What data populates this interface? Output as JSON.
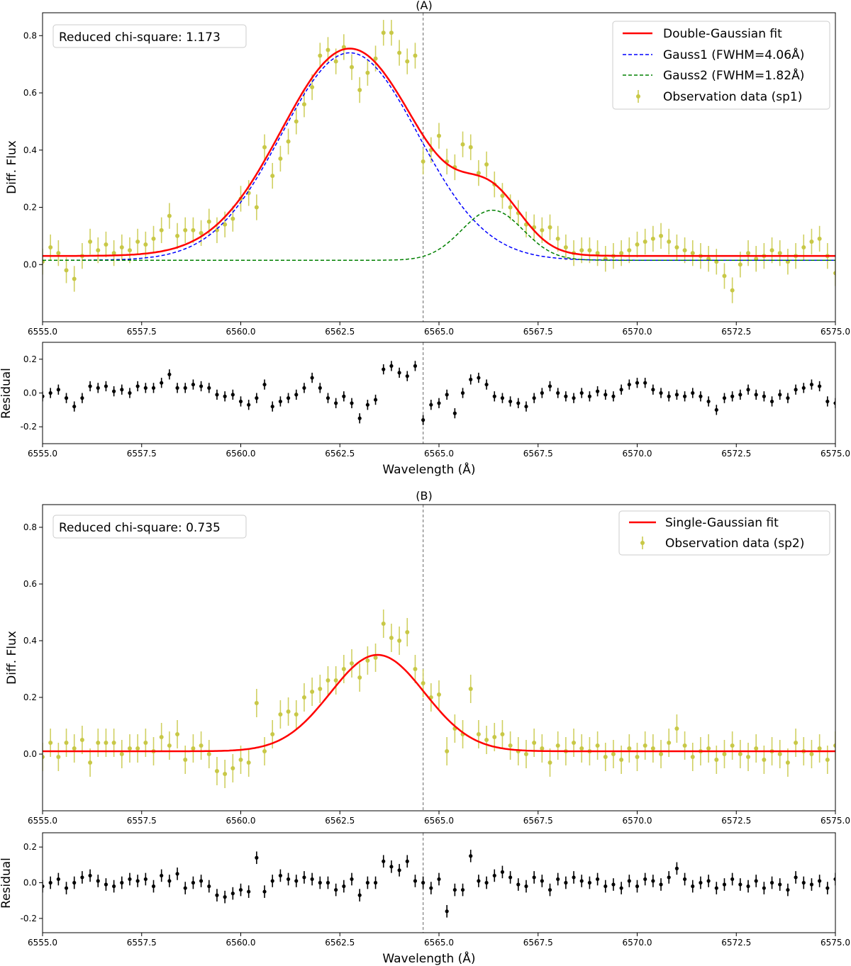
{
  "chart_data": [
    {
      "type": "scatter",
      "title": "(A)",
      "ylabel": "Diff. Flux",
      "xlim": [
        6555,
        6575
      ],
      "ylim": [
        -0.2,
        0.88
      ],
      "yticks": [
        "0.0",
        "0.2",
        "0.4",
        "0.6",
        "0.8"
      ],
      "xticks": [
        "6555.0",
        "6557.5",
        "6560.0",
        "6562.5",
        "6565.0",
        "6567.5",
        "6570.0",
        "6572.5",
        "6575.0"
      ],
      "annotation": "Reduced chi-square: 1.173",
      "ref_line_x": 6564.6,
      "legend_position": "top-right",
      "legend": [
        "Double-Gaussian fit",
        "Gauss1 (FWHM=4.06Å)",
        "Gauss2 (FWHM=1.82Å)",
        "Observation data (sp1)"
      ],
      "fit_params": {
        "baseline": 0.03,
        "g1": {
          "center": 6562.75,
          "fwhm": 4.06,
          "amp": 0.725
        },
        "g2": {
          "center": 6566.35,
          "fwhm": 1.82,
          "amp": 0.175
        }
      },
      "observations": {
        "x": [
          6555.0,
          6555.2,
          6555.4,
          6555.6,
          6555.8,
          6556.0,
          6556.2,
          6556.4,
          6556.6,
          6556.8,
          6557.0,
          6557.2,
          6557.4,
          6557.6,
          6557.8,
          6558.0,
          6558.2,
          6558.4,
          6558.6,
          6558.8,
          6559.0,
          6559.2,
          6559.4,
          6559.6,
          6559.8,
          6560.0,
          6560.2,
          6560.4,
          6560.6,
          6560.8,
          6561.0,
          6561.2,
          6561.4,
          6561.6,
          6561.8,
          6562.0,
          6562.2,
          6562.4,
          6562.6,
          6562.8,
          6563.0,
          6563.2,
          6563.4,
          6563.6,
          6563.8,
          6564.0,
          6564.2,
          6564.4,
          6564.6,
          6564.8,
          6565.0,
          6565.2,
          6565.4,
          6565.6,
          6565.8,
          6566.0,
          6566.2,
          6566.4,
          6566.6,
          6566.8,
          6567.0,
          6567.2,
          6567.4,
          6567.6,
          6567.8,
          6568.0,
          6568.2,
          6568.4,
          6568.6,
          6568.8,
          6569.0,
          6569.2,
          6569.4,
          6569.6,
          6569.8,
          6570.0,
          6570.2,
          6570.4,
          6570.6,
          6570.8,
          6571.0,
          6571.2,
          6571.4,
          6571.6,
          6571.8,
          6572.0,
          6572.2,
          6572.4,
          6572.6,
          6572.8,
          6573.0,
          6573.2,
          6573.4,
          6573.6,
          6573.8,
          6574.0,
          6574.2,
          6574.4,
          6574.6,
          6574.8,
          6575.0
        ],
        "y": [
          0.01,
          0.06,
          0.04,
          -0.02,
          -0.05,
          0.03,
          0.08,
          0.05,
          0.07,
          0.04,
          0.06,
          0.05,
          0.08,
          0.07,
          0.09,
          0.12,
          0.17,
          0.1,
          0.12,
          0.12,
          0.11,
          0.15,
          0.12,
          0.14,
          0.16,
          0.23,
          0.25,
          0.2,
          0.41,
          0.31,
          0.37,
          0.43,
          0.5,
          0.56,
          0.62,
          0.73,
          0.75,
          0.71,
          0.76,
          0.69,
          0.61,
          0.67,
          0.72,
          0.81,
          0.81,
          0.74,
          0.71,
          0.73,
          0.36,
          0.4,
          0.45,
          0.36,
          0.34,
          0.42,
          0.41,
          0.32,
          0.35,
          0.28,
          0.24,
          0.2,
          0.18,
          0.14,
          0.13,
          0.12,
          0.13,
          0.09,
          0.06,
          0.04,
          0.05,
          0.05,
          0.04,
          0.02,
          0.03,
          0.04,
          0.05,
          0.07,
          0.08,
          0.09,
          0.1,
          0.08,
          0.06,
          0.05,
          0.04,
          0.03,
          0.02,
          0.01,
          -0.04,
          -0.09,
          0.0,
          0.04,
          0.02,
          0.03,
          0.05,
          0.04,
          0.01,
          0.03,
          0.06,
          0.08,
          0.09,
          0.03,
          -0.03
        ],
        "err": 0.045
      },
      "residual": {
        "ylabel": "Residual",
        "xlabel": "Wavelength (Å)",
        "ylim": [
          -0.3,
          0.3
        ],
        "yticks": [
          "-0.2",
          "0.0",
          "0.2"
        ],
        "x": [
          6555.0,
          6555.2,
          6555.4,
          6555.6,
          6555.8,
          6556.0,
          6556.2,
          6556.4,
          6556.6,
          6556.8,
          6557.0,
          6557.2,
          6557.4,
          6557.6,
          6557.8,
          6558.0,
          6558.2,
          6558.4,
          6558.6,
          6558.8,
          6559.0,
          6559.2,
          6559.4,
          6559.6,
          6559.8,
          6560.0,
          6560.2,
          6560.4,
          6560.6,
          6560.8,
          6561.0,
          6561.2,
          6561.4,
          6561.6,
          6561.8,
          6562.0,
          6562.2,
          6562.4,
          6562.6,
          6562.8,
          6563.0,
          6563.2,
          6563.4,
          6563.6,
          6563.8,
          6564.0,
          6564.2,
          6564.4,
          6564.6,
          6564.8,
          6565.0,
          6565.2,
          6565.4,
          6565.6,
          6565.8,
          6566.0,
          6566.2,
          6566.4,
          6566.6,
          6566.8,
          6567.0,
          6567.2,
          6567.4,
          6567.6,
          6567.8,
          6568.0,
          6568.2,
          6568.4,
          6568.6,
          6568.8,
          6569.0,
          6569.2,
          6569.4,
          6569.6,
          6569.8,
          6570.0,
          6570.2,
          6570.4,
          6570.6,
          6570.8,
          6571.0,
          6571.2,
          6571.4,
          6571.6,
          6571.8,
          6572.0,
          6572.2,
          6572.4,
          6572.6,
          6572.8,
          6573.0,
          6573.2,
          6573.4,
          6573.6,
          6573.8,
          6574.0,
          6574.2,
          6574.4,
          6574.6,
          6574.8,
          6575.0
        ],
        "y": [
          -0.02,
          0.0,
          0.02,
          -0.03,
          -0.08,
          -0.03,
          0.04,
          0.03,
          0.04,
          0.01,
          0.02,
          0.0,
          0.04,
          0.03,
          0.03,
          0.06,
          0.11,
          0.03,
          0.03,
          0.05,
          0.04,
          0.03,
          -0.01,
          -0.02,
          -0.01,
          -0.05,
          -0.07,
          -0.03,
          0.05,
          -0.08,
          -0.05,
          -0.03,
          -0.01,
          0.03,
          0.09,
          0.03,
          -0.03,
          -0.06,
          -0.02,
          -0.06,
          -0.15,
          -0.07,
          -0.04,
          0.14,
          0.16,
          0.12,
          0.1,
          0.16,
          -0.16,
          -0.07,
          -0.06,
          -0.01,
          -0.12,
          0.0,
          0.08,
          0.09,
          0.05,
          -0.02,
          -0.03,
          -0.05,
          -0.06,
          -0.08,
          -0.03,
          0.0,
          0.04,
          0.0,
          -0.02,
          -0.03,
          0.0,
          -0.02,
          0.01,
          -0.01,
          -0.02,
          0.02,
          0.05,
          0.06,
          0.06,
          0.02,
          0.0,
          -0.02,
          -0.01,
          -0.02,
          0.0,
          -0.02,
          -0.05,
          -0.1,
          -0.03,
          -0.02,
          -0.01,
          0.02,
          -0.01,
          -0.02,
          -0.05,
          -0.01,
          -0.03,
          0.02,
          0.03,
          0.05,
          0.04,
          -0.05,
          -0.06
        ],
        "err": 0.03
      }
    },
    {
      "type": "scatter",
      "title": "(B)",
      "ylabel": "Diff. Flux",
      "xlim": [
        6555,
        6575
      ],
      "ylim": [
        -0.2,
        0.88
      ],
      "yticks": [
        "0.0",
        "0.2",
        "0.4",
        "0.6",
        "0.8"
      ],
      "xticks": [
        "6555.0",
        "6557.5",
        "6560.0",
        "6562.5",
        "6565.0",
        "6567.5",
        "6570.0",
        "6572.5",
        "6575.0"
      ],
      "annotation": "Reduced chi-square: 0.735",
      "ref_line_x": 6564.6,
      "legend_position": "top-right",
      "legend": [
        "Single-Gaussian fit",
        "Observation data (sp2)"
      ],
      "fit_params": {
        "baseline": 0.01,
        "g1": {
          "center": 6563.45,
          "fwhm": 2.8,
          "amp": 0.34
        }
      },
      "observations": {
        "x": [
          6555.0,
          6555.2,
          6555.4,
          6555.6,
          6555.8,
          6556.0,
          6556.2,
          6556.4,
          6556.6,
          6556.8,
          6557.0,
          6557.2,
          6557.4,
          6557.6,
          6557.8,
          6558.0,
          6558.2,
          6558.4,
          6558.6,
          6558.8,
          6559.0,
          6559.2,
          6559.4,
          6559.6,
          6559.8,
          6560.0,
          6560.2,
          6560.4,
          6560.6,
          6560.8,
          6561.0,
          6561.2,
          6561.4,
          6561.6,
          6561.8,
          6562.0,
          6562.2,
          6562.4,
          6562.6,
          6562.8,
          6563.0,
          6563.2,
          6563.4,
          6563.6,
          6563.8,
          6564.0,
          6564.2,
          6564.4,
          6564.6,
          6564.8,
          6565.0,
          6565.2,
          6565.4,
          6565.6,
          6565.8,
          6566.0,
          6566.2,
          6566.4,
          6566.6,
          6566.8,
          6567.0,
          6567.2,
          6567.4,
          6567.6,
          6567.8,
          6568.0,
          6568.2,
          6568.4,
          6568.6,
          6568.8,
          6569.0,
          6569.2,
          6569.4,
          6569.6,
          6569.8,
          6570.0,
          6570.2,
          6570.4,
          6570.6,
          6570.8,
          6571.0,
          6571.2,
          6571.4,
          6571.6,
          6571.8,
          6572.0,
          6572.2,
          6572.4,
          6572.6,
          6572.8,
          6573.0,
          6573.2,
          6573.4,
          6573.6,
          6573.8,
          6574.0,
          6574.2,
          6574.4,
          6574.6,
          6574.8,
          6575.0
        ],
        "y": [
          -0.01,
          0.04,
          -0.01,
          0.04,
          0.02,
          0.05,
          -0.03,
          0.04,
          0.04,
          0.04,
          0.0,
          0.02,
          0.02,
          0.04,
          0.01,
          0.06,
          0.03,
          0.07,
          -0.02,
          0.02,
          0.03,
          0.0,
          -0.06,
          -0.07,
          -0.05,
          -0.02,
          -0.03,
          0.18,
          0.01,
          0.07,
          0.14,
          0.15,
          0.14,
          0.2,
          0.22,
          0.23,
          0.26,
          0.26,
          0.3,
          0.32,
          0.27,
          0.33,
          0.34,
          0.46,
          0.41,
          0.4,
          0.43,
          0.3,
          0.25,
          0.2,
          0.21,
          0.01,
          0.09,
          0.07,
          0.23,
          0.07,
          0.05,
          0.06,
          0.07,
          0.03,
          0.01,
          0.0,
          0.04,
          0.02,
          -0.03,
          0.03,
          0.01,
          0.04,
          0.02,
          0.01,
          0.03,
          -0.01,
          0.0,
          -0.02,
          0.02,
          -0.01,
          0.03,
          0.02,
          0.0,
          0.04,
          0.09,
          0.03,
          -0.01,
          0.01,
          0.02,
          -0.02,
          0.0,
          0.03,
          0.0,
          -0.01,
          0.02,
          -0.02,
          0.01,
          0.0,
          -0.03,
          0.04,
          0.01,
          0.0,
          0.02,
          -0.02,
          0.03
        ],
        "err": 0.05
      },
      "residual": {
        "ylabel": "Residual",
        "xlabel": "Wavelength (Å)",
        "ylim": [
          -0.28,
          0.28
        ],
        "yticks": [
          "-0.2",
          "0.0",
          "0.2"
        ],
        "x": [
          6555.0,
          6555.2,
          6555.4,
          6555.6,
          6555.8,
          6556.0,
          6556.2,
          6556.4,
          6556.6,
          6556.8,
          6557.0,
          6557.2,
          6557.4,
          6557.6,
          6557.8,
          6558.0,
          6558.2,
          6558.4,
          6558.6,
          6558.8,
          6559.0,
          6559.2,
          6559.4,
          6559.6,
          6559.8,
          6560.0,
          6560.2,
          6560.4,
          6560.6,
          6560.8,
          6561.0,
          6561.2,
          6561.4,
          6561.6,
          6561.8,
          6562.0,
          6562.2,
          6562.4,
          6562.6,
          6562.8,
          6563.0,
          6563.2,
          6563.4,
          6563.6,
          6563.8,
          6564.0,
          6564.2,
          6564.4,
          6564.6,
          6564.8,
          6565.0,
          6565.2,
          6565.4,
          6565.6,
          6565.8,
          6566.0,
          6566.2,
          6566.4,
          6566.6,
          6566.8,
          6567.0,
          6567.2,
          6567.4,
          6567.6,
          6567.8,
          6568.0,
          6568.2,
          6568.4,
          6568.6,
          6568.8,
          6569.0,
          6569.2,
          6569.4,
          6569.6,
          6569.8,
          6570.0,
          6570.2,
          6570.4,
          6570.6,
          6570.8,
          6571.0,
          6571.2,
          6571.4,
          6571.6,
          6571.8,
          6572.0,
          6572.2,
          6572.4,
          6572.6,
          6572.8,
          6573.0,
          6573.2,
          6573.4,
          6573.6,
          6573.8,
          6574.0,
          6574.2,
          6574.4,
          6574.6,
          6574.8,
          6575.0
        ],
        "y": [
          -0.02,
          0.0,
          0.02,
          -0.03,
          0.0,
          0.03,
          0.04,
          0.01,
          -0.01,
          -0.02,
          0.0,
          0.02,
          0.01,
          0.02,
          -0.02,
          0.04,
          0.01,
          0.05,
          -0.03,
          0.0,
          0.01,
          -0.02,
          -0.07,
          -0.08,
          -0.06,
          -0.04,
          -0.05,
          0.14,
          -0.05,
          0.01,
          0.04,
          0.02,
          0.01,
          0.03,
          0.02,
          0.0,
          0.0,
          -0.04,
          -0.02,
          0.02,
          -0.07,
          0.0,
          0.0,
          0.12,
          0.09,
          0.07,
          0.12,
          0.01,
          0.0,
          -0.03,
          0.02,
          -0.16,
          -0.04,
          -0.04,
          0.15,
          0.01,
          0.0,
          0.04,
          0.06,
          0.03,
          -0.01,
          -0.02,
          0.03,
          0.01,
          -0.04,
          0.02,
          0.0,
          0.03,
          0.01,
          0.0,
          0.02,
          -0.02,
          -0.01,
          -0.03,
          0.01,
          -0.02,
          0.02,
          0.01,
          -0.01,
          0.03,
          0.08,
          0.02,
          -0.02,
          0.0,
          0.01,
          -0.03,
          -0.01,
          0.02,
          -0.01,
          -0.02,
          0.01,
          -0.03,
          0.0,
          -0.01,
          -0.04,
          0.03,
          0.0,
          -0.01,
          0.01,
          -0.03,
          0.02
        ],
        "err": 0.035
      }
    }
  ],
  "colors": {
    "fit": "#ff0000",
    "gauss1": "#0000ff",
    "gauss2": "#008000",
    "observation": "#c8c846",
    "residual": "#000000",
    "ref_line": "#808080"
  }
}
